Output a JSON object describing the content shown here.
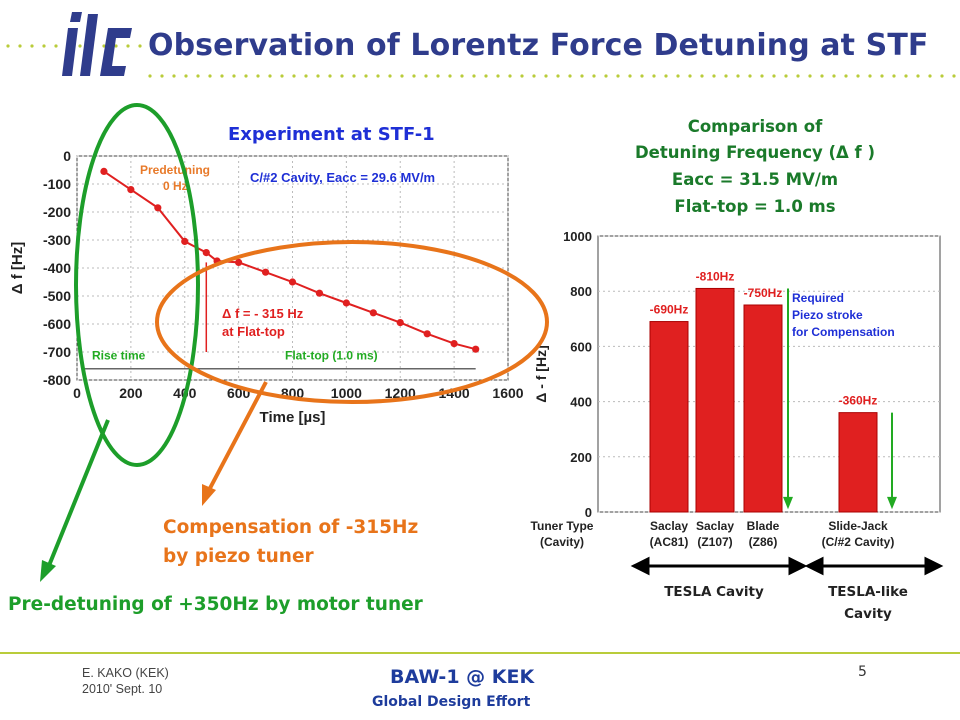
{
  "slide": {
    "title": "Observation of Lorentz Force Detuning at STF",
    "logo_text": "ilc",
    "experiment_title": "Experiment at STF-1",
    "comparison": {
      "line1": "Comparison of",
      "line2": "Detuning Frequency (Δ f )",
      "line3": "Eacc = 31.5 MV/m",
      "line4": "Flat-top = 1.0 ms"
    },
    "compensation": {
      "line1": "Compensation of -315Hz",
      "line2": "by piezo tuner"
    },
    "predetuning": "Pre-detuning of +350Hz by motor tuner",
    "cavity_labels": {
      "tesla": "TESLA Cavity",
      "tesla_like_1": "TESLA-like",
      "tesla_like_2": "Cavity"
    },
    "footer": {
      "author": "E. KAKO (KEK)",
      "date": "2010' Sept. 10",
      "meeting": "BAW-1 @ KEK",
      "org": "Global Design Effort",
      "page": "5"
    },
    "colors": {
      "title": "#2f3c8c",
      "accent_green": "#1d9e2a",
      "accent_orange": "#e8741a",
      "series_red": "#e02020",
      "dots": "#b9cc3a"
    }
  },
  "chart_data": [
    {
      "type": "line",
      "title": "C/#2 Cavity, Eacc = 29.6 MV/m",
      "xlabel": "Time [µs]",
      "ylabel": "Δ f [Hz]",
      "xlim": [
        0,
        1600
      ],
      "ylim": [
        -800,
        0
      ],
      "xticks": [
        0,
        200,
        400,
        600,
        800,
        1000,
        1200,
        1400,
        1600
      ],
      "yticks": [
        0,
        -100,
        -200,
        -300,
        -400,
        -500,
        -600,
        -700,
        -800
      ],
      "series": [
        {
          "x": [
            100,
            200,
            300,
            400,
            480,
            520,
            600,
            700,
            800,
            900,
            1000,
            1100,
            1200,
            1300,
            1400,
            1480
          ],
          "values": [
            -55,
            -120,
            -185,
            -305,
            -345,
            -375,
            -380,
            -415,
            -450,
            -490,
            -525,
            -560,
            -595,
            -635,
            -670,
            -690
          ]
        }
      ],
      "annotations": [
        "Predetuning",
        "0 Hz",
        "Δ f = - 315 Hz",
        "at Flat-top",
        "Rise time",
        "Flat-top (1.0 ms)"
      ]
    },
    {
      "type": "bar",
      "xlabel": "",
      "ylabel": "Δ - f [Hz]",
      "ylim": [
        0,
        1000
      ],
      "yticks": [
        0,
        200,
        400,
        600,
        800,
        1000
      ],
      "axis_header": "Tuner Type",
      "axis_header_sub": "(Cavity)",
      "categories": [
        "Saclay",
        "Saclay",
        "Blade",
        "Slide-Jack"
      ],
      "categories_sub": [
        "(AC81)",
        "(Z107)",
        "(Z86)",
        "(C/#2 Cavity)"
      ],
      "values": [
        690,
        810,
        750,
        360
      ],
      "data_labels": [
        "-690Hz",
        "-810Hz",
        "-750Hz",
        "-360Hz"
      ],
      "annotations": [
        "Required",
        "Piezo stroke",
        "for Compensation"
      ]
    }
  ]
}
